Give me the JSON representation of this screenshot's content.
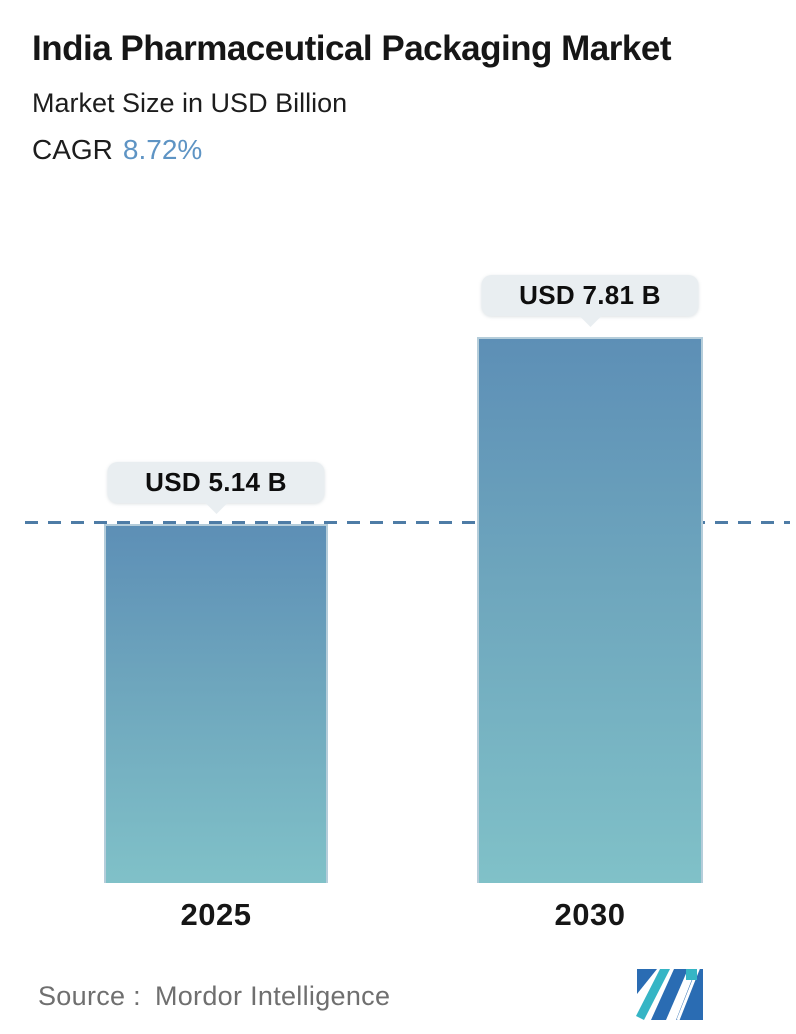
{
  "header": {
    "title": "India Pharmaceutical Packaging Market",
    "subtitle": "Market Size in USD Billion",
    "cagr_label": "CAGR",
    "cagr_value": "8.72%"
  },
  "chart_data": {
    "type": "bar",
    "categories": [
      "2025",
      "2030"
    ],
    "values": [
      5.14,
      7.81
    ],
    "value_labels": [
      "USD 5.14 B",
      "USD 7.81 B"
    ],
    "unit": "USD Billion",
    "title": "India Pharmaceutical Packaging Market",
    "xlabel": "",
    "ylabel": "Market Size in USD Billion",
    "ylim": [
      0,
      7.81
    ],
    "gridlines": false,
    "legend": false,
    "reference_line_at_value": 5.14,
    "reference_line_style": "dashed",
    "colors": {
      "bar_gradient_top": "#5d8fb6",
      "bar_gradient_bottom": "#80c1c8",
      "dashed_line": "#4e7ca6",
      "tooltip_background": "#e9eef1",
      "cagr_accent": "#5e94c4",
      "logo_blue": "#2a6cb3",
      "logo_teal": "#36b5c5"
    }
  },
  "footer": {
    "source_label": "Source :",
    "source_value": "Mordor Intelligence",
    "logo_name": "mordor-intelligence-logo"
  }
}
